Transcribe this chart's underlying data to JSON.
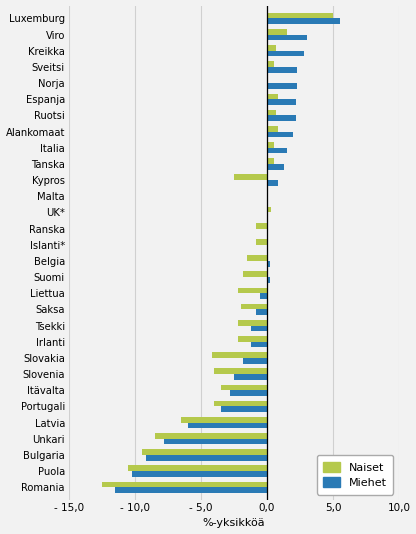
{
  "countries": [
    "Luxemburg",
    "Viro",
    "Kreikka",
    "Sveitsi",
    "Norja",
    "Espanja",
    "Ruotsi",
    "Alankomaat",
    "Italia",
    "Tanska",
    "Kypros",
    "Malta",
    "UK*",
    "Ranska",
    "Islanti*",
    "Belgia",
    "Suomi",
    "Liettua",
    "Saksa",
    "Tsekki",
    "Irlanti",
    "Slovakia",
    "Slovenia",
    "Itävalta",
    "Portugali",
    "Latvia",
    "Unkari",
    "Bulgaria",
    "Puola",
    "Romania"
  ],
  "naiset": [
    5.0,
    1.5,
    0.7,
    0.5,
    0.0,
    0.8,
    0.7,
    0.8,
    0.5,
    0.5,
    -2.5,
    0.0,
    0.3,
    -0.8,
    -0.8,
    -1.5,
    -1.8,
    -2.2,
    -2.0,
    -2.2,
    -2.2,
    -4.2,
    -4.0,
    -3.5,
    -4.0,
    -6.5,
    -8.5,
    -9.5,
    -10.5,
    -12.5
  ],
  "miehet": [
    5.5,
    3.0,
    2.8,
    2.3,
    2.3,
    2.2,
    2.2,
    2.0,
    1.5,
    1.3,
    0.8,
    0.1,
    0.0,
    0.0,
    0.1,
    0.2,
    0.2,
    -0.5,
    -0.8,
    -1.2,
    -1.2,
    -1.8,
    -2.5,
    -2.8,
    -3.5,
    -6.0,
    -7.8,
    -9.2,
    -10.2,
    -11.5
  ],
  "color_naiset": "#b5c94c",
  "color_miehet": "#2a7ab5",
  "xlabel": "%-yksikköä",
  "xlim": [
    -15.0,
    10.0
  ],
  "xticks": [
    -15.0,
    -10.0,
    -5.0,
    0.0,
    5.0,
    10.0
  ],
  "xtick_labels": [
    "- 15,0",
    "- 10,0",
    "- 5,0",
    "0,0",
    "5,0",
    "10,0"
  ],
  "legend_naiset": "Naiset",
  "legend_miehet": "Miehet",
  "bar_height": 0.35,
  "grid_color": "#d0d0d0",
  "background_color": "#f2f2f2"
}
